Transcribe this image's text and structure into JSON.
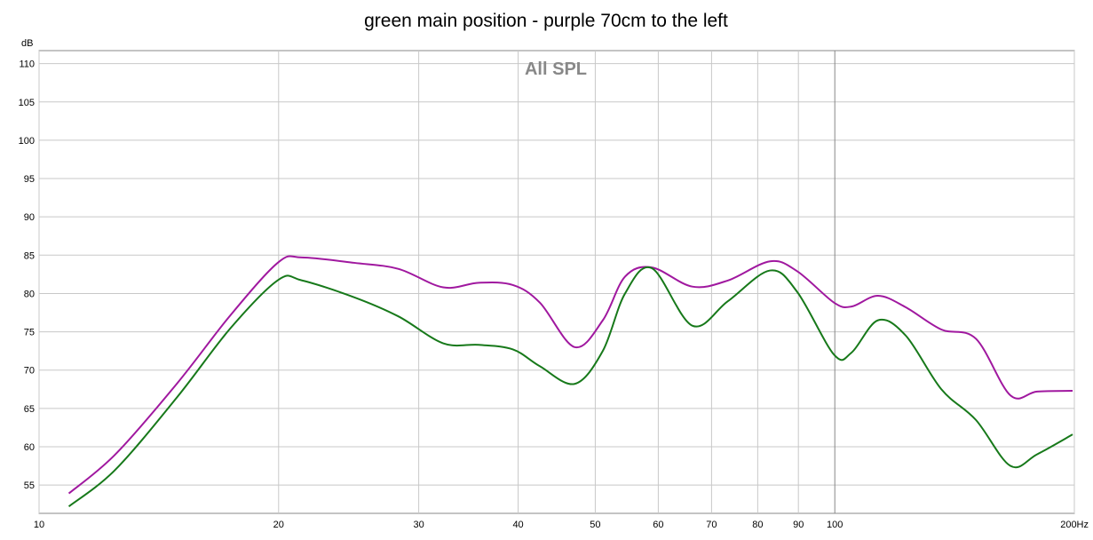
{
  "chart_data": {
    "type": "line",
    "title": "green main position - purple 70cm to the left",
    "annotation": "All SPL",
    "ylabel": "dB",
    "log_x": true,
    "grid": true,
    "x": [
      10.9,
      12.47,
      14.92,
      17.41,
      20.0,
      21.4,
      24.9,
      28.3,
      32.2,
      35.7,
      39.4,
      42.6,
      47.1,
      51.1,
      54.5,
      58.9,
      66.2,
      73.4,
      82.9,
      89.7,
      99.8,
      105,
      113.3,
      122.8,
      136.1,
      150.4,
      166.2,
      179.5,
      199
    ],
    "series": [
      {
        "name": "purple 70cm to the left",
        "color": "#a0189f",
        "values": [
          53.9,
          59,
          68.3,
          77.2,
          84.1,
          84.7,
          84,
          83.2,
          80.8,
          81.4,
          81.1,
          78.8,
          73.0,
          76.5,
          82.2,
          83.4,
          80.9,
          81.7,
          84.2,
          82.9,
          78.8,
          78.3,
          79.7,
          78.2,
          75.3,
          74.1,
          66.7,
          67.2,
          67.3
        ]
      },
      {
        "name": "green main position",
        "color": "#17791a",
        "values": [
          52.2,
          57,
          66.5,
          75.5,
          81.8,
          81.7,
          79.5,
          77,
          73.5,
          73.3,
          72.7,
          70.5,
          68.2,
          72.5,
          80,
          83.3,
          75.8,
          79,
          83,
          80.2,
          72,
          72.3,
          76.5,
          74.5,
          67.5,
          63.5,
          57.5,
          59,
          61.6
        ]
      }
    ],
    "xlim": [
      10,
      200
    ],
    "xticks": [
      10,
      20,
      30,
      40,
      50,
      60,
      70,
      80,
      90,
      100,
      {
        "value": 200,
        "label": "200Hz"
      }
    ],
    "ylim": [
      51.3,
      111.7
    ],
    "yticks": [
      55,
      60,
      65,
      70,
      75,
      80,
      85,
      90,
      95,
      100,
      105,
      110
    ]
  }
}
